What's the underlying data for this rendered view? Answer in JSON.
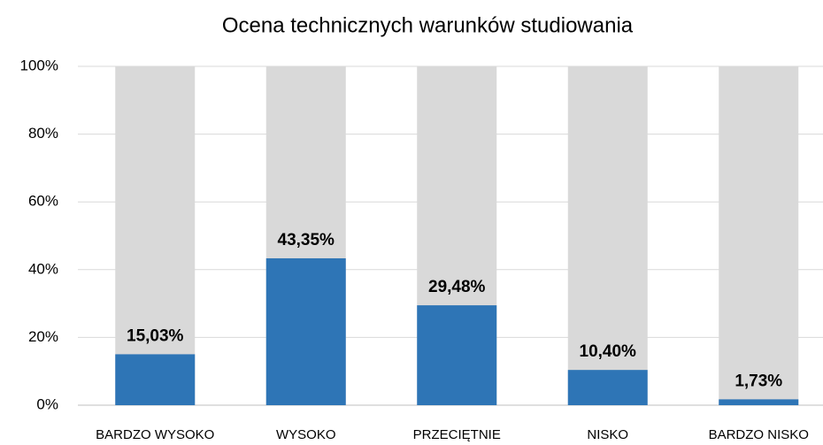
{
  "chart_data": {
    "type": "bar",
    "title": "Ocena technicznych warunków studiowania",
    "categories": [
      "BARDZO WYSOKO",
      "WYSOKO",
      "PRZECIĘTNIE",
      "NISKO",
      "BARDZO NISKO"
    ],
    "values": [
      15.03,
      43.35,
      29.48,
      10.4,
      1.73
    ],
    "value_labels": [
      "15,03%",
      "43,35%",
      "29,48%",
      "10,40%",
      "1,73%"
    ],
    "color": "#2e75b6",
    "background_color": "#d9d9d9",
    "ylim": [
      0,
      100
    ],
    "yticks": [
      {
        "value": 0,
        "label": "0%"
      },
      {
        "value": 20,
        "label": "20%"
      },
      {
        "value": 40,
        "label": "40%"
      },
      {
        "value": 60,
        "label": "60%"
      },
      {
        "value": 80,
        "label": "80%"
      },
      {
        "value": 100,
        "label": "100%"
      }
    ],
    "grid": true
  }
}
